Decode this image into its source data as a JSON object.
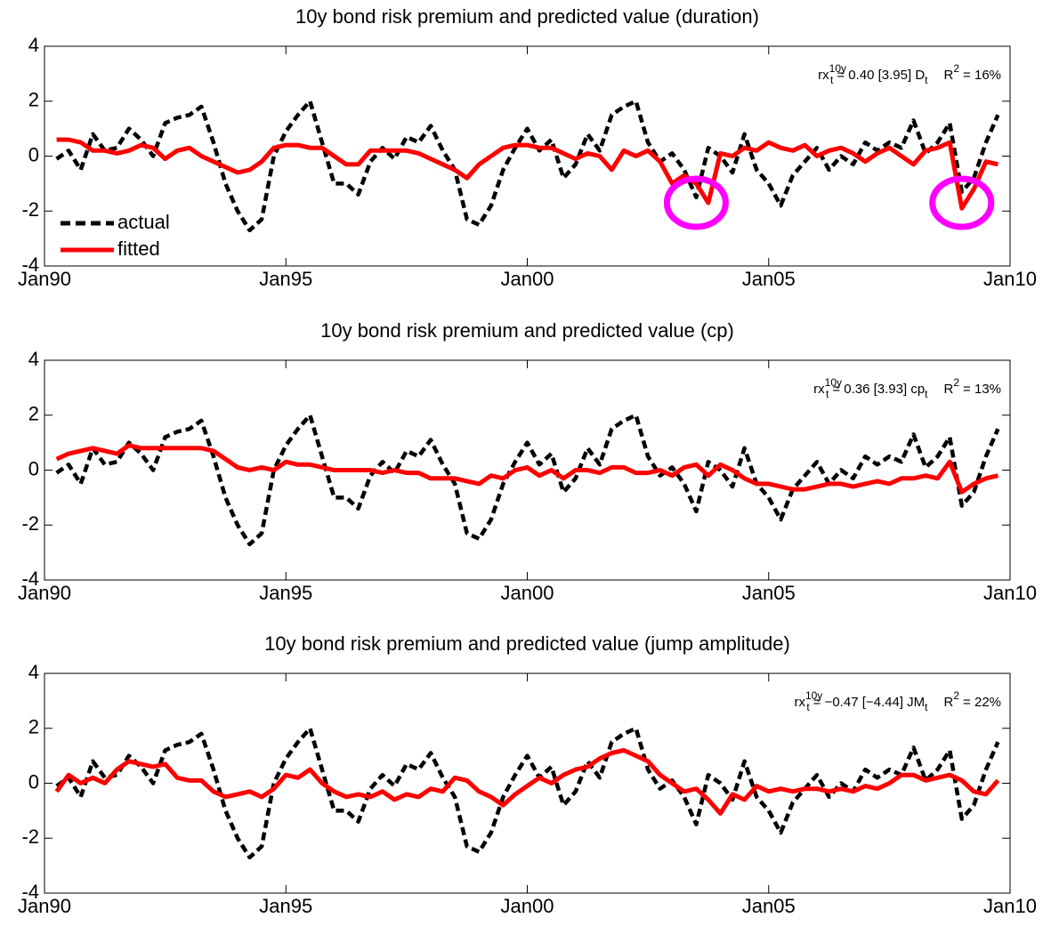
{
  "chart_data": [
    {
      "type": "line",
      "title": "10y bond risk premium and predicted value (duration)",
      "annotation": [
        "rx",
        "10y",
        "t",
        "= 0.40 [3.95] D",
        "t",
        "R",
        "2",
        "= 16%"
      ],
      "x": [
        1990.25,
        1990.5,
        1990.75,
        1991,
        1991.25,
        1991.5,
        1991.75,
        1992,
        1992.25,
        1992.5,
        1992.75,
        1993,
        1993.25,
        1993.5,
        1993.75,
        1994,
        1994.25,
        1994.5,
        1994.75,
        1995,
        1995.25,
        1995.5,
        1995.75,
        1996,
        1996.25,
        1996.5,
        1996.75,
        1997,
        1997.25,
        1997.5,
        1997.75,
        1998,
        1998.25,
        1998.5,
        1998.75,
        1999,
        1999.25,
        1999.5,
        1999.75,
        2000,
        2000.25,
        2000.5,
        2000.75,
        2001,
        2001.25,
        2001.5,
        2001.75,
        2002,
        2002.25,
        2002.5,
        2002.75,
        2003,
        2003.25,
        2003.5,
        2003.75,
        2004,
        2004.25,
        2004.5,
        2004.75,
        2005,
        2005.25,
        2005.5,
        2005.75,
        2006,
        2006.25,
        2006.5,
        2006.75,
        2007,
        2007.25,
        2007.5,
        2007.75,
        2008,
        2008.25,
        2008.5,
        2008.75,
        2009,
        2009.25,
        2009.5,
        2009.75
      ],
      "series": [
        {
          "name": "actual",
          "color": "#000000",
          "style": "dashed",
          "values": [
            -0.1,
            0.2,
            -0.5,
            0.8,
            0.2,
            0.3,
            1.0,
            0.6,
            0.0,
            1.2,
            1.4,
            1.5,
            1.8,
            0.5,
            -1.0,
            -2.0,
            -2.7,
            -2.3,
            0.0,
            0.9,
            1.5,
            2.0,
            0.5,
            -1.0,
            -1.0,
            -1.4,
            -0.2,
            0.3,
            -0.1,
            0.7,
            0.5,
            1.1,
            0.2,
            -0.5,
            -2.3,
            -2.5,
            -1.8,
            -0.5,
            0.3,
            1.0,
            0.2,
            0.6,
            -0.8,
            -0.3,
            0.8,
            0.2,
            1.5,
            1.8,
            2.0,
            0.5,
            -0.2,
            0.1,
            -0.5,
            -1.5,
            0.3,
            0.0,
            -0.6,
            0.8,
            -0.5,
            -1.0,
            -1.8,
            -0.7,
            -0.2,
            0.3,
            -0.5,
            0.0,
            -0.3,
            0.5,
            0.2,
            0.5,
            0.3,
            1.3,
            0.1,
            0.5,
            1.2,
            -1.3,
            -0.8,
            0.5,
            1.5
          ]
        },
        {
          "name": "fitted",
          "color": "#ff0000",
          "style": "solid",
          "values": [
            0.6,
            0.6,
            0.5,
            0.2,
            0.2,
            0.1,
            0.2,
            0.4,
            0.3,
            -0.1,
            0.2,
            0.3,
            0.0,
            -0.2,
            -0.4,
            -0.6,
            -0.5,
            -0.2,
            0.3,
            0.4,
            0.4,
            0.3,
            0.3,
            0.0,
            -0.3,
            -0.3,
            0.2,
            0.2,
            0.2,
            0.2,
            0.1,
            -0.1,
            -0.3,
            -0.5,
            -0.8,
            -0.3,
            0.0,
            0.3,
            0.4,
            0.4,
            0.3,
            0.3,
            0.1,
            -0.1,
            0.1,
            0.0,
            -0.5,
            0.2,
            0.0,
            0.2,
            -0.2,
            -1.0,
            -0.7,
            -1.0,
            -1.7,
            0.1,
            0.0,
            0.3,
            0.2,
            0.5,
            0.3,
            0.2,
            0.4,
            0.0,
            0.2,
            0.3,
            0.1,
            -0.2,
            0.1,
            0.3,
            0.0,
            -0.3,
            0.2,
            0.3,
            0.5,
            -1.9,
            -1.2,
            -0.2,
            -0.3
          ]
        }
      ],
      "highlights": [
        {
          "x": 2003.5,
          "y": -1.7
        },
        {
          "x": 2009,
          "y": -1.7
        }
      ],
      "highlight_color": "#ff00ff",
      "legend": "lower left",
      "xlim": [
        1990,
        2010
      ],
      "xticks": [
        {
          "value": 1990,
          "label": "Jan90"
        },
        {
          "value": 1995,
          "label": "Jan95"
        },
        {
          "value": 2000,
          "label": "Jan00"
        },
        {
          "value": 2005,
          "label": "Jan05"
        },
        {
          "value": 2010,
          "label": "Jan10"
        }
      ],
      "ylim": [
        -4,
        4
      ],
      "yticks": [
        -4,
        -2,
        0,
        2,
        4
      ]
    },
    {
      "type": "line",
      "title": "10y bond risk premium and predicted value (cp)",
      "annotation": [
        "rx",
        "10y",
        "t",
        "= 0.36 [3.93] cp",
        "t",
        "R",
        "2",
        "= 13%"
      ],
      "x": [
        1990.25,
        1990.5,
        1990.75,
        1991,
        1991.25,
        1991.5,
        1991.75,
        1992,
        1992.25,
        1992.5,
        1992.75,
        1993,
        1993.25,
        1993.5,
        1993.75,
        1994,
        1994.25,
        1994.5,
        1994.75,
        1995,
        1995.25,
        1995.5,
        1995.75,
        1996,
        1996.25,
        1996.5,
        1996.75,
        1997,
        1997.25,
        1997.5,
        1997.75,
        1998,
        1998.25,
        1998.5,
        1998.75,
        1999,
        1999.25,
        1999.5,
        1999.75,
        2000,
        2000.25,
        2000.5,
        2000.75,
        2001,
        2001.25,
        2001.5,
        2001.75,
        2002,
        2002.25,
        2002.5,
        2002.75,
        2003,
        2003.25,
        2003.5,
        2003.75,
        2004,
        2004.25,
        2004.5,
        2004.75,
        2005,
        2005.25,
        2005.5,
        2005.75,
        2006,
        2006.25,
        2006.5,
        2006.75,
        2007,
        2007.25,
        2007.5,
        2007.75,
        2008,
        2008.25,
        2008.5,
        2008.75,
        2009,
        2009.25,
        2009.5,
        2009.75
      ],
      "series": [
        {
          "color": "#000000",
          "style": "dashed",
          "values": [
            -0.1,
            0.2,
            -0.5,
            0.8,
            0.2,
            0.3,
            1.0,
            0.6,
            0.0,
            1.2,
            1.4,
            1.5,
            1.8,
            0.5,
            -1.0,
            -2.0,
            -2.7,
            -2.3,
            0.0,
            0.9,
            1.5,
            2.0,
            0.5,
            -1.0,
            -1.0,
            -1.4,
            -0.2,
            0.3,
            -0.1,
            0.7,
            0.5,
            1.1,
            0.2,
            -0.5,
            -2.3,
            -2.5,
            -1.8,
            -0.5,
            0.3,
            1.0,
            0.2,
            0.6,
            -0.8,
            -0.3,
            0.8,
            0.2,
            1.5,
            1.8,
            2.0,
            0.5,
            -0.2,
            0.1,
            -0.5,
            -1.5,
            0.3,
            0.0,
            -0.6,
            0.8,
            -0.5,
            -1.0,
            -1.8,
            -0.7,
            -0.2,
            0.3,
            -0.5,
            0.0,
            -0.3,
            0.5,
            0.2,
            0.5,
            0.3,
            1.3,
            0.1,
            0.5,
            1.2,
            -1.3,
            -0.8,
            0.5,
            1.5
          ]
        },
        {
          "color": "#ff0000",
          "style": "solid",
          "values": [
            0.4,
            0.6,
            0.7,
            0.8,
            0.7,
            0.6,
            0.9,
            0.8,
            0.8,
            0.8,
            0.8,
            0.8,
            0.8,
            0.7,
            0.4,
            0.1,
            0.0,
            0.1,
            0.0,
            0.3,
            0.2,
            0.2,
            0.1,
            0.0,
            0.0,
            0.0,
            0.0,
            -0.1,
            0.0,
            -0.1,
            -0.1,
            -0.3,
            -0.3,
            -0.3,
            -0.4,
            -0.5,
            -0.2,
            -0.3,
            0.0,
            0.1,
            -0.2,
            0.0,
            -0.3,
            0.0,
            0.0,
            -0.1,
            0.1,
            0.1,
            -0.1,
            -0.1,
            0.0,
            -0.2,
            0.1,
            0.2,
            -0.2,
            0.2,
            0.0,
            -0.3,
            -0.5,
            -0.5,
            -0.6,
            -0.7,
            -0.7,
            -0.6,
            -0.5,
            -0.5,
            -0.6,
            -0.5,
            -0.4,
            -0.5,
            -0.3,
            -0.3,
            -0.2,
            -0.3,
            0.3,
            -0.8,
            -0.5,
            -0.3,
            -0.2
          ]
        }
      ],
      "xlim": [
        1990,
        2010
      ],
      "xticks": [
        {
          "value": 1990,
          "label": "Jan90"
        },
        {
          "value": 1995,
          "label": "Jan95"
        },
        {
          "value": 2000,
          "label": "Jan00"
        },
        {
          "value": 2005,
          "label": "Jan05"
        },
        {
          "value": 2010,
          "label": "Jan10"
        }
      ],
      "ylim": [
        -4,
        4
      ],
      "yticks": [
        -4,
        -2,
        0,
        2,
        4
      ]
    },
    {
      "type": "line",
      "title": "10y bond risk premium and predicted value (jump amplitude)",
      "annotation": [
        "rx",
        "10y",
        "t",
        "= −0.47 [−4.44] JM",
        "t",
        "R",
        "2",
        "= 22%"
      ],
      "x": [
        1990.25,
        1990.5,
        1990.75,
        1991,
        1991.25,
        1991.5,
        1991.75,
        1992,
        1992.25,
        1992.5,
        1992.75,
        1993,
        1993.25,
        1993.5,
        1993.75,
        1994,
        1994.25,
        1994.5,
        1994.75,
        1995,
        1995.25,
        1995.5,
        1995.75,
        1996,
        1996.25,
        1996.5,
        1996.75,
        1997,
        1997.25,
        1997.5,
        1997.75,
        1998,
        1998.25,
        1998.5,
        1998.75,
        1999,
        1999.25,
        1999.5,
        1999.75,
        2000,
        2000.25,
        2000.5,
        2000.75,
        2001,
        2001.25,
        2001.5,
        2001.75,
        2002,
        2002.25,
        2002.5,
        2002.75,
        2003,
        2003.25,
        2003.5,
        2003.75,
        2004,
        2004.25,
        2004.5,
        2004.75,
        2005,
        2005.25,
        2005.5,
        2005.75,
        2006,
        2006.25,
        2006.5,
        2006.75,
        2007,
        2007.25,
        2007.5,
        2007.75,
        2008,
        2008.25,
        2008.5,
        2008.75,
        2009,
        2009.25,
        2009.5,
        2009.75
      ],
      "series": [
        {
          "color": "#000000",
          "style": "dashed",
          "values": [
            -0.1,
            0.2,
            -0.5,
            0.8,
            0.2,
            0.3,
            1.0,
            0.6,
            0.0,
            1.2,
            1.4,
            1.5,
            1.8,
            0.5,
            -1.0,
            -2.0,
            -2.7,
            -2.3,
            0.0,
            0.9,
            1.5,
            2.0,
            0.5,
            -1.0,
            -1.0,
            -1.4,
            -0.2,
            0.3,
            -0.1,
            0.7,
            0.5,
            1.1,
            0.2,
            -0.5,
            -2.3,
            -2.5,
            -1.8,
            -0.5,
            0.3,
            1.0,
            0.2,
            0.6,
            -0.8,
            -0.3,
            0.8,
            0.2,
            1.5,
            1.8,
            2.0,
            0.5,
            -0.2,
            0.1,
            -0.5,
            -1.5,
            0.3,
            0.0,
            -0.6,
            0.8,
            -0.5,
            -1.0,
            -1.8,
            -0.7,
            -0.2,
            0.3,
            -0.5,
            0.0,
            -0.3,
            0.5,
            0.2,
            0.5,
            0.3,
            1.3,
            0.1,
            0.5,
            1.2,
            -1.3,
            -0.8,
            0.5,
            1.5
          ]
        },
        {
          "color": "#ff0000",
          "style": "solid",
          "values": [
            -0.3,
            0.3,
            0.0,
            0.2,
            0.0,
            0.5,
            0.8,
            0.7,
            0.6,
            0.7,
            0.2,
            0.1,
            0.1,
            -0.3,
            -0.5,
            -0.4,
            -0.3,
            -0.5,
            -0.2,
            0.3,
            0.2,
            0.5,
            0.0,
            -0.3,
            -0.5,
            -0.4,
            -0.5,
            -0.3,
            -0.6,
            -0.4,
            -0.5,
            -0.2,
            -0.3,
            0.2,
            0.1,
            -0.3,
            -0.5,
            -0.8,
            -0.4,
            -0.1,
            0.2,
            0.0,
            0.3,
            0.5,
            0.6,
            0.9,
            1.1,
            1.2,
            1.0,
            0.8,
            0.3,
            0.0,
            -0.3,
            -0.2,
            -0.6,
            -1.1,
            -0.4,
            -0.6,
            -0.1,
            -0.3,
            -0.2,
            -0.3,
            -0.2,
            -0.2,
            -0.3,
            -0.2,
            -0.3,
            -0.1,
            -0.2,
            0.0,
            0.3,
            0.3,
            0.1,
            0.2,
            0.3,
            0.1,
            -0.3,
            -0.4,
            0.1
          ]
        }
      ],
      "xlim": [
        1990,
        2010
      ],
      "xticks": [
        {
          "value": 1990,
          "label": "Jan90"
        },
        {
          "value": 1995,
          "label": "Jan95"
        },
        {
          "value": 2000,
          "label": "Jan00"
        },
        {
          "value": 2005,
          "label": "Jan05"
        },
        {
          "value": 2010,
          "label": "Jan10"
        }
      ],
      "ylim": [
        -4,
        4
      ],
      "yticks": [
        -4,
        -2,
        0,
        2,
        4
      ]
    }
  ]
}
